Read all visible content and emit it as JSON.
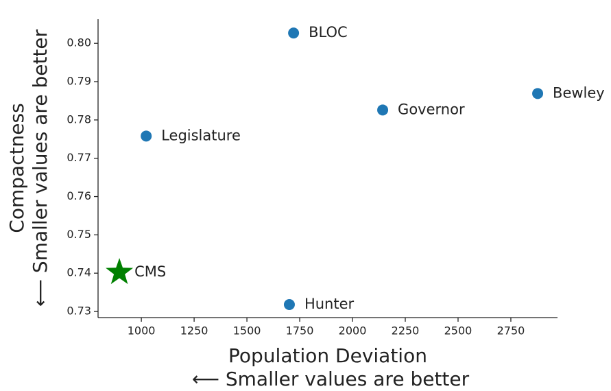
{
  "chart_data": {
    "type": "scatter",
    "xlabel": [
      "Population Deviation",
      "⟵ Smaller values are better"
    ],
    "ylabel": [
      "Compactness",
      "⟵ Smaller values are better"
    ],
    "series": [
      {
        "color": "#1f77b4",
        "marker": "circle",
        "labels": [
          "BLOC",
          "Governor",
          "Bewley",
          "Legislature",
          "Hunter"
        ],
        "x": [
          1721,
          2143,
          2877,
          1023,
          1701
        ],
        "values": [
          0.8027,
          0.7826,
          0.7869,
          0.7758,
          0.7318
        ]
      },
      {
        "color": "#008000",
        "marker": "star",
        "labels": [
          "CMS"
        ],
        "x": [
          896
        ],
        "values": [
          0.7402
        ]
      }
    ],
    "xlim": [
      795,
      2971
    ],
    "xticks": [
      1000,
      1250,
      1500,
      1750,
      2000,
      2250,
      2500,
      2750
    ],
    "ylim": [
      0.7284,
      0.8063
    ],
    "yticks": [
      {
        "value": 0.73,
        "label": "0.73"
      },
      {
        "value": 0.74,
        "label": "0.74"
      },
      {
        "value": 0.75,
        "label": "0.75"
      },
      {
        "value": 0.76,
        "label": "0.76"
      },
      {
        "value": 0.77,
        "label": "0.77"
      },
      {
        "value": 0.78,
        "label": "0.78"
      },
      {
        "value": 0.79,
        "label": "0.79"
      },
      {
        "value": 0.8,
        "label": "0.80"
      }
    ],
    "grid": false
  }
}
